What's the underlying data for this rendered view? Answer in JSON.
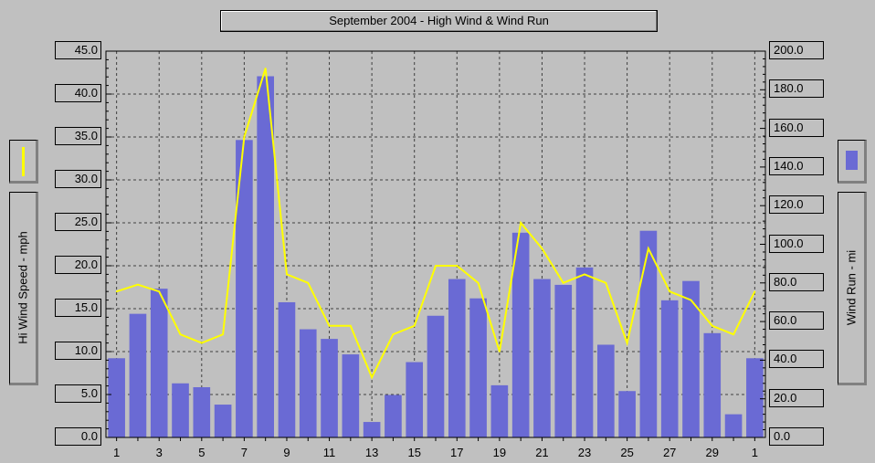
{
  "chart_data": {
    "type": "bar",
    "title": "September 2004 - High Wind & Wind Run",
    "x_tick_labels": [
      "1",
      "3",
      "5",
      "7",
      "9",
      "11",
      "13",
      "15",
      "17",
      "19",
      "21",
      "23",
      "25",
      "27",
      "29",
      "1"
    ],
    "days": [
      1,
      2,
      3,
      4,
      5,
      6,
      7,
      8,
      9,
      10,
      11,
      12,
      13,
      14,
      15,
      16,
      17,
      18,
      19,
      20,
      21,
      22,
      23,
      24,
      25,
      26,
      27,
      28,
      29,
      30,
      31
    ],
    "series": [
      {
        "name": "Wind Run - mi",
        "axis": "right",
        "kind": "bar",
        "values": [
          41,
          64,
          77,
          28,
          26,
          17,
          154,
          187,
          70,
          56,
          51,
          43,
          8,
          22,
          39,
          63,
          82,
          72,
          27,
          106,
          82,
          79,
          88,
          48,
          24,
          107,
          71,
          81,
          54,
          12,
          41
        ]
      },
      {
        "name": "Hi Wind Speed - mph",
        "axis": "left",
        "kind": "line",
        "values": [
          17,
          17.8,
          17,
          12,
          11,
          12,
          35,
          43,
          19,
          18,
          13,
          13,
          7,
          12,
          13,
          20,
          20,
          18,
          10,
          25,
          22,
          18,
          19,
          18,
          11,
          22,
          17,
          16,
          13,
          12,
          17
        ]
      }
    ],
    "y_left": {
      "label": "Hi Wind Speed - mph",
      "range": [
        0,
        45
      ],
      "ticks": [
        "45.0",
        "40.0",
        "35.0",
        "30.0",
        "25.0",
        "20.0",
        "15.0",
        "10.0",
        "5.0",
        "0.0"
      ]
    },
    "y_right": {
      "label": "Wind Run - mi",
      "range": [
        0,
        200
      ],
      "ticks": [
        "200.0",
        "180.0",
        "160.0",
        "140.0",
        "120.0",
        "100.0",
        "80.0",
        "60.0",
        "40.0",
        "20.0",
        "0.0"
      ]
    },
    "grid": true,
    "legend": "sides",
    "colors": {
      "bar": "#6a6ad4",
      "line": "#ffff00",
      "plot_bg": "#c0c0c0",
      "grid": "#404040"
    }
  }
}
